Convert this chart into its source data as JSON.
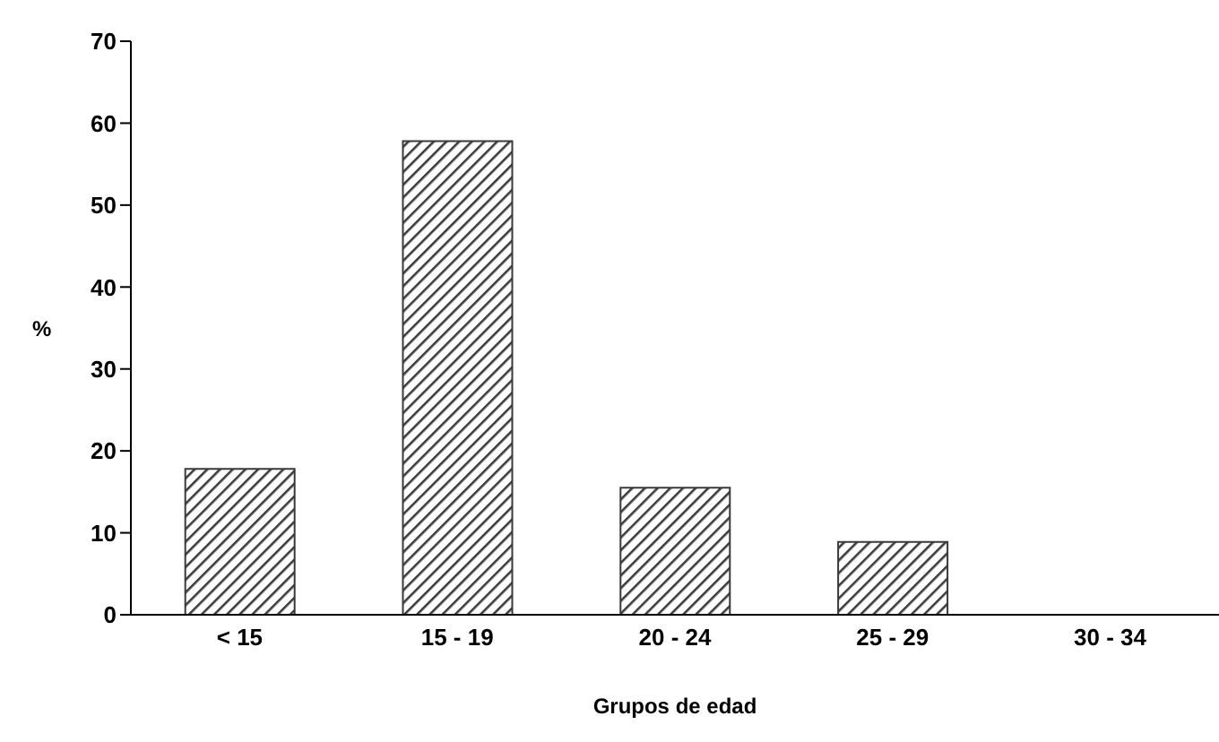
{
  "chart_data": {
    "type": "bar",
    "xlabel": "Grupos de edad",
    "ylabel": "%",
    "categories": [
      "< 15",
      "15 - 19",
      "20 - 24",
      "25 - 29",
      "30 - 34"
    ],
    "values": [
      17.8,
      57.8,
      15.5,
      8.9,
      0
    ],
    "color": "#3a3a3a",
    "ylim": [
      0,
      70
    ],
    "yticks": [
      0,
      10,
      20,
      30,
      40,
      50,
      60,
      70
    ],
    "grid": false
  }
}
